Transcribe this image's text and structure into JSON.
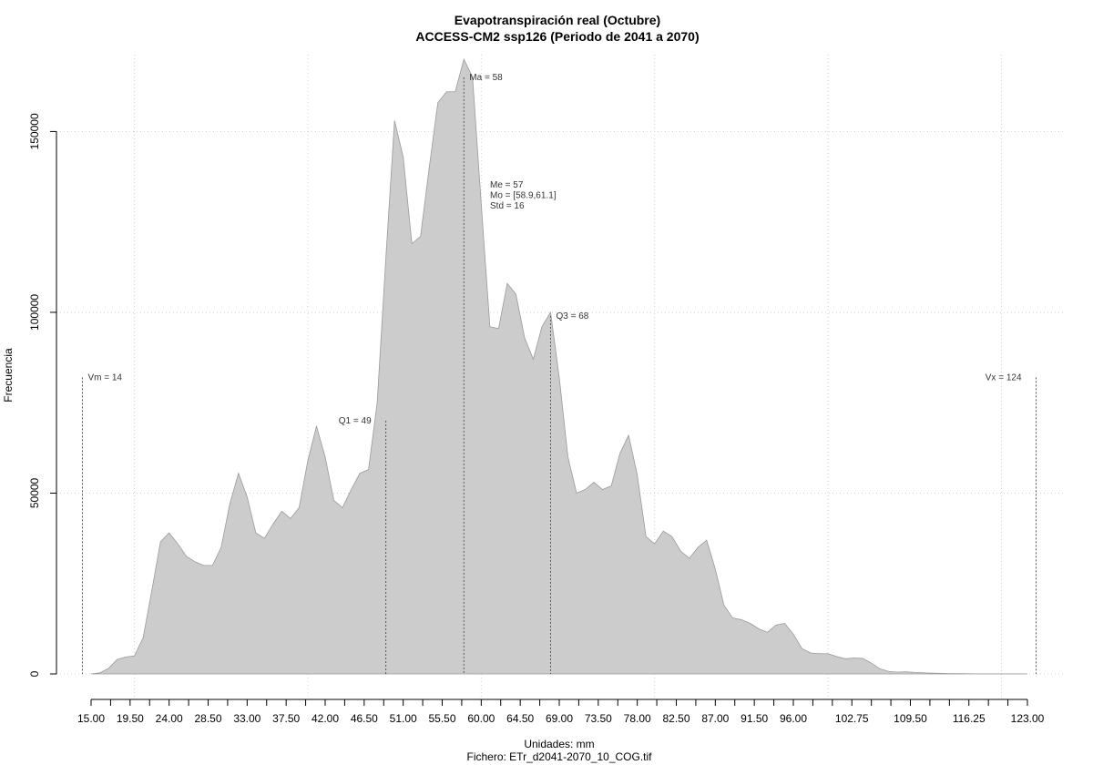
{
  "chart_data": {
    "type": "area",
    "title": "Evapotranspiración real (Octubre)",
    "subtitle": "ACCESS-CM2 ssp126 (Periodo de 2041 a 2070)",
    "xlabel": "Unidades: mm",
    "ylabel": "Frecuencia",
    "footer": "Fichero: ETr_d2041-2070_10_COG.tif",
    "xlim": [
      15,
      123
    ],
    "ylim": [
      0,
      170000
    ],
    "grid": true,
    "fill_color": "#cccccc",
    "stroke_color": "#9a9a9a",
    "x_ticks": [
      15.0,
      17.25,
      19.5,
      21.75,
      24.0,
      26.25,
      28.5,
      30.75,
      33.0,
      35.25,
      37.5,
      39.75,
      42.0,
      44.25,
      46.5,
      48.75,
      51.0,
      53.25,
      55.5,
      57.75,
      60.0,
      62.25,
      64.5,
      66.75,
      69.0,
      71.25,
      73.5,
      75.75,
      78.0,
      80.25,
      82.5,
      84.75,
      87.0,
      89.25,
      91.5,
      93.75,
      96.0,
      98.25,
      100.5,
      102.75,
      105.0,
      107.25,
      109.5,
      111.75,
      114.0,
      116.25,
      118.5,
      120.75,
      123.0
    ],
    "x_tick_labels": [
      "15.00",
      "19.50",
      "24.00",
      "28.50",
      "33.00",
      "37.50",
      "42.00",
      "46.50",
      "51.00",
      "55.50",
      "60.00",
      "64.50",
      "69.00",
      "73.50",
      "78.00",
      "82.50",
      "87.00",
      "91.50",
      "96.00",
      "102.75",
      "109.50",
      "116.25",
      "123.00"
    ],
    "x_tick_label_values": [
      15,
      19.5,
      24,
      28.5,
      33,
      37.5,
      42,
      46.5,
      51,
      55.5,
      60,
      64.5,
      69,
      73.5,
      78,
      82.5,
      87,
      91.5,
      96,
      102.75,
      109.5,
      116.25,
      123
    ],
    "x_grid": [
      20,
      40,
      60,
      80,
      100,
      120
    ],
    "y_ticks": [
      0,
      50000,
      100000,
      150000
    ],
    "y_tick_labels": [
      "0",
      "50000",
      "100000",
      "150000"
    ],
    "x": [
      15,
      16,
      17,
      18,
      19,
      20,
      21,
      22,
      23,
      24,
      25,
      26,
      27,
      28,
      29,
      30,
      31,
      32,
      33,
      34,
      35,
      36,
      37,
      38,
      39,
      40,
      41,
      42,
      43,
      44,
      45,
      46,
      47,
      48,
      49,
      50,
      51,
      52,
      53,
      54,
      55,
      56,
      57,
      58,
      59,
      60,
      61,
      62,
      63,
      64,
      65,
      66,
      67,
      68,
      69,
      70,
      71,
      72,
      73,
      74,
      75,
      76,
      77,
      78,
      79,
      80,
      81,
      82,
      83,
      84,
      85,
      86,
      87,
      88,
      89,
      90,
      91,
      92,
      93,
      94,
      95,
      96,
      97,
      98,
      99,
      100,
      101,
      102,
      103,
      104,
      105,
      106,
      107,
      108,
      109,
      110,
      111,
      112,
      113,
      114,
      115,
      116,
      117,
      118,
      119,
      120,
      121,
      122,
      123
    ],
    "y": [
      0,
      300,
      1500,
      4000,
      4700,
      5000,
      10000,
      23000,
      36500,
      39000,
      36000,
      32500,
      31000,
      30000,
      30000,
      35000,
      47000,
      55500,
      49000,
      39000,
      37500,
      41500,
      45000,
      43000,
      46000,
      59000,
      68500,
      60000,
      48000,
      46000,
      51000,
      55500,
      56500,
      75000,
      115000,
      153000,
      143000,
      119000,
      121000,
      140000,
      158000,
      161000,
      161000,
      170000,
      165000,
      130000,
      96000,
      95500,
      108000,
      105000,
      93000,
      87000,
      96000,
      100000,
      82000,
      60000,
      50000,
      51000,
      53000,
      51000,
      52000,
      61000,
      66000,
      55000,
      38000,
      36000,
      39500,
      38000,
      34000,
      32000,
      35000,
      37000,
      29000,
      19000,
      15500,
      15000,
      14000,
      12500,
      11500,
      13500,
      14000,
      11000,
      7000,
      5800,
      5600,
      5600,
      4800,
      4200,
      4400,
      4300,
      3000,
      1400,
      700,
      500,
      600,
      400,
      300,
      200,
      150,
      100,
      80,
      60,
      40,
      30,
      20,
      20,
      10,
      10,
      0
    ],
    "vlines": [
      {
        "x": 14,
        "label": "Vm = 14",
        "y_top": 82000,
        "label_side": "right"
      },
      {
        "x": 49,
        "label": "Q1 = 49",
        "y_top": 70000,
        "label_side": "left"
      },
      {
        "x": 58,
        "label": "Ma = 58",
        "y_top": 165000,
        "label_side": "right"
      },
      {
        "x": 68,
        "label": "Q3 = 68",
        "y_top": 99000,
        "label_side": "right"
      },
      {
        "x": 124,
        "label": "Vx = 124",
        "y_top": 82000,
        "label_side": "left"
      }
    ],
    "stats_annotation": [
      "Me = 57",
      "Mo = [58.9,61.1]",
      "Std = 16"
    ]
  }
}
